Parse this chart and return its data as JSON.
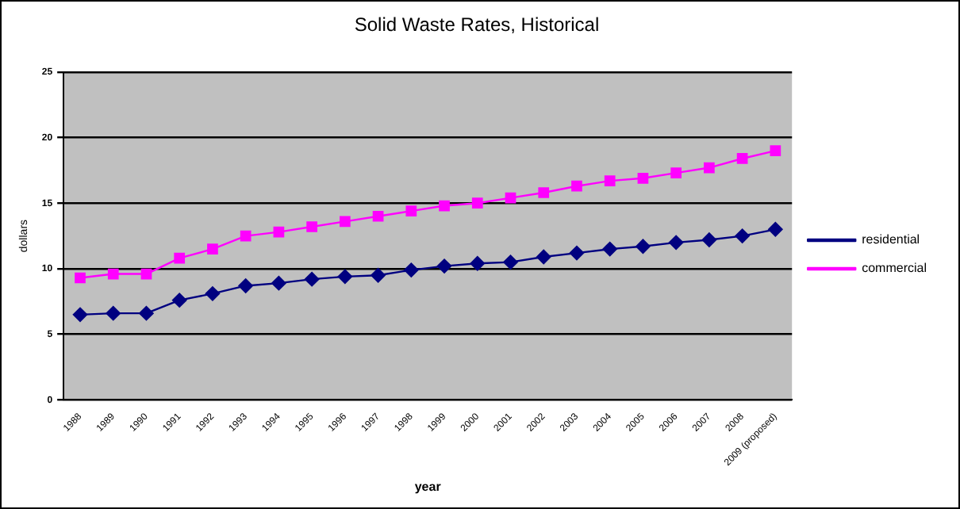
{
  "chart_data": {
    "type": "line",
    "title": "Solid Waste Rates, Historical",
    "xlabel": "year",
    "ylabel": "dollars",
    "categories": [
      "1988",
      "1989",
      "1990",
      "1991",
      "1992",
      "1993",
      "1994",
      "1995",
      "1996",
      "1997",
      "1998",
      "1999",
      "2000",
      "2001",
      "2002",
      "2003",
      "2004",
      "2005",
      "2006",
      "2007",
      "2008",
      "2009 (proposed)"
    ],
    "series": [
      {
        "name": "residential",
        "color": "#000080",
        "marker": "diamond",
        "values": [
          6.5,
          6.6,
          6.6,
          7.6,
          8.1,
          8.7,
          8.9,
          9.2,
          9.4,
          9.5,
          9.9,
          10.2,
          10.4,
          10.5,
          10.9,
          11.2,
          11.5,
          11.7,
          12.0,
          12.2,
          12.5,
          13.0
        ]
      },
      {
        "name": "commercial",
        "color": "#ff00ff",
        "marker": "square",
        "values": [
          9.3,
          9.6,
          9.6,
          10.8,
          11.5,
          12.5,
          12.8,
          13.2,
          13.6,
          14.0,
          14.4,
          14.8,
          15.0,
          15.4,
          15.8,
          16.3,
          16.7,
          16.9,
          17.3,
          17.7,
          18.4,
          19.0
        ]
      }
    ],
    "ylim": [
      0,
      25
    ],
    "yticks": [
      0,
      5,
      10,
      15,
      20,
      25
    ],
    "grid": "y",
    "legend": "right",
    "line_style": "solid"
  }
}
